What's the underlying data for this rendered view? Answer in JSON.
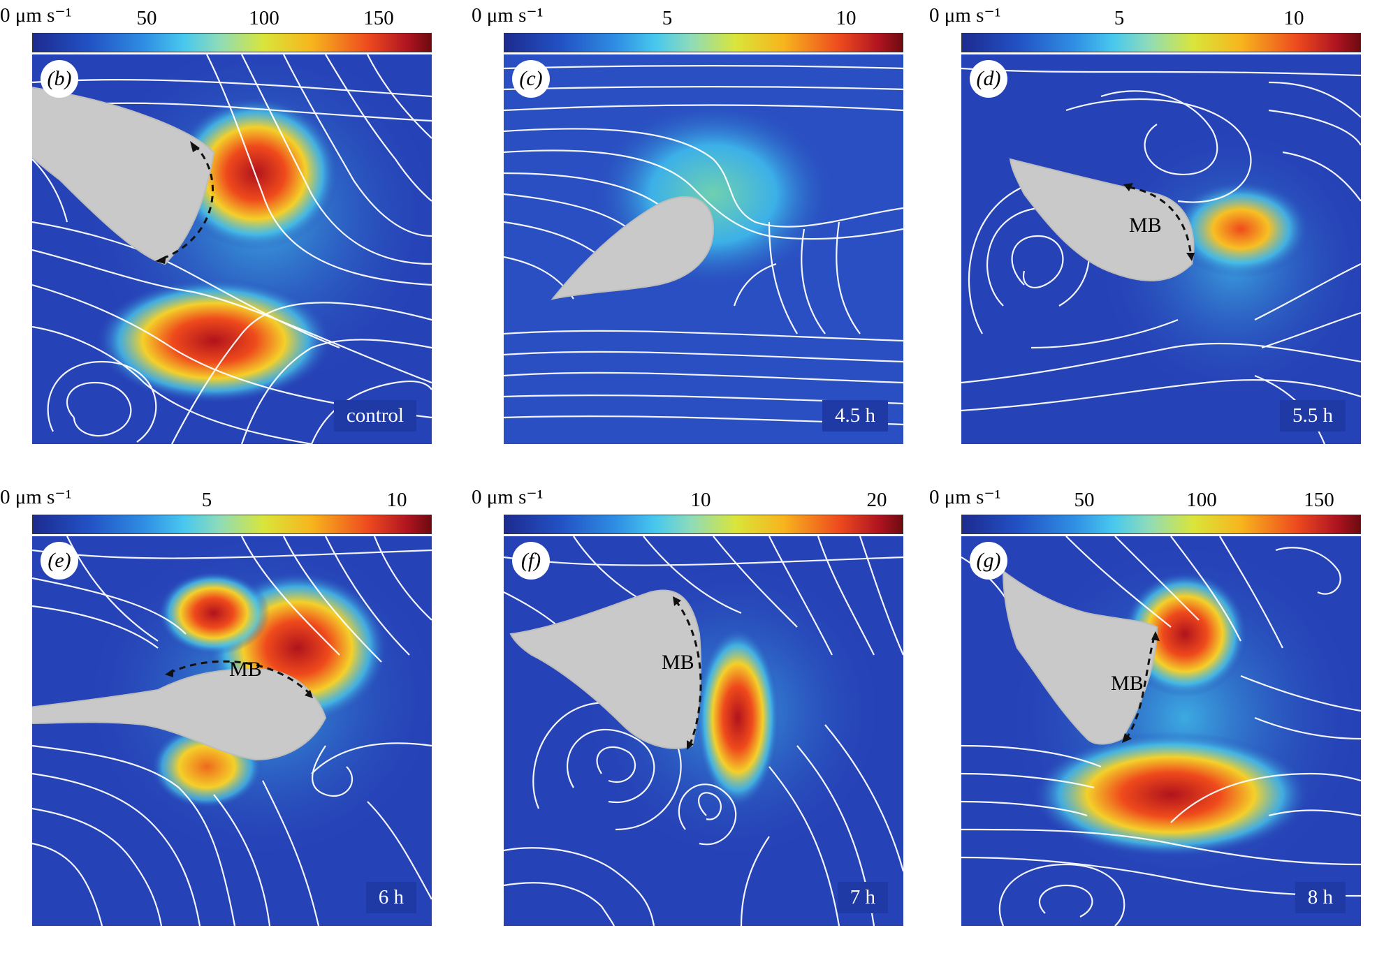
{
  "colorbar_unit": "0 μm s⁻¹",
  "panels": [
    {
      "label": "(b)",
      "time": "control",
      "ticks": [
        "50",
        "100",
        "150"
      ],
      "mb": ""
    },
    {
      "label": "(c)",
      "time": "4.5 h",
      "ticks": [
        "5",
        "10"
      ],
      "mb": ""
    },
    {
      "label": "(d)",
      "time": "5.5 h",
      "ticks": [
        "5",
        "10"
      ],
      "mb": "MB"
    },
    {
      "label": "(e)",
      "time": "6 h",
      "ticks": [
        "5",
        "10"
      ],
      "mb": "MB"
    },
    {
      "label": "(f)",
      "time": "7 h",
      "ticks": [
        "10",
        "20"
      ],
      "mb": "MB"
    },
    {
      "label": "(g)",
      "time": "8 h",
      "ticks": [
        "50",
        "100",
        "150"
      ],
      "mb": "MB"
    }
  ]
}
